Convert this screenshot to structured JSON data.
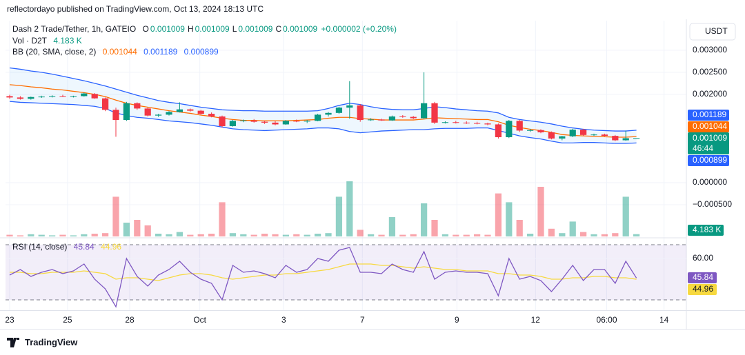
{
  "header": {
    "published": "reflectordayo published on TradingView.com, Oct 13, 2024 18:13 UTC"
  },
  "footer": "TradingView",
  "chart_data": {
    "type": "candlestick",
    "symbol": "Dash 2 Trade/Tether, 1h, GATEIO",
    "ohlc_labels": [
      "O",
      "H",
      "L",
      "C"
    ],
    "change": "+0.000002 (+0.20%)",
    "volume_title": "Vol · D2T",
    "volume_label": "4.183 K",
    "bb_title": "BB (20, SMA, close, 2)",
    "rsi_title": "RSI (14, close)",
    "currency": "USDT",
    "countdown": "46:44",
    "up_color": "#089981",
    "down_color": "#f23645",
    "bb_color": "#2962ff",
    "basis_color": "#ff6d00",
    "rsi_color": "#7e57c2",
    "rsi_ma_color": "#f7d940",
    "xlim": [
      -0.39,
      63.7
    ],
    "xticks": [
      {
        "value": 0,
        "label": "23"
      },
      {
        "value": 5.45,
        "label": "25"
      },
      {
        "value": 11.3,
        "label": "28"
      },
      {
        "value": 17.9,
        "label": "Oct"
      },
      {
        "value": 25.8,
        "label": "3"
      },
      {
        "value": 33.2,
        "label": "7"
      },
      {
        "value": 42.1,
        "label": "9"
      },
      {
        "value": 49.5,
        "label": "12"
      },
      {
        "value": 56.2,
        "label": "06:00"
      },
      {
        "value": 61.6,
        "label": "14"
      }
    ],
    "ylim": [
      -0.00125,
      0.00367
    ],
    "yticks": [
      {
        "value": 0.003,
        "label": "0.003000"
      },
      {
        "value": 0.0025,
        "label": "0.002500"
      },
      {
        "value": 0.002,
        "label": "0.002000"
      },
      {
        "value": 0,
        "label": "0.000000"
      },
      {
        "value": -0.0005,
        "label": "−0.000500"
      }
    ],
    "grid": true,
    "candles": [
      [
        0.00196,
        0.00199,
        0.0019,
        0.00193
      ],
      [
        0.00193,
        0.00196,
        0.00188,
        0.0019
      ],
      [
        0.0019,
        0.00195,
        0.00188,
        0.00194
      ],
      [
        0.00194,
        0.00197,
        0.00192,
        0.00195
      ],
      [
        0.00195,
        0.00198,
        0.00193,
        0.00196
      ],
      [
        0.00196,
        0.00199,
        0.00194,
        0.00195
      ],
      [
        0.00195,
        0.00197,
        0.00193,
        0.00196
      ],
      [
        0.00196,
        0.00204,
        0.00195,
        0.00202
      ],
      [
        0.00201,
        0.00203,
        0.0019,
        0.00191
      ],
      [
        0.00191,
        0.00193,
        0.00162,
        0.00165
      ],
      [
        0.00165,
        0.0017,
        0.00104,
        0.00142
      ],
      [
        0.00142,
        0.00183,
        0.0014,
        0.0018
      ],
      [
        0.0018,
        0.00182,
        0.00165,
        0.00168
      ],
      [
        0.00168,
        0.0017,
        0.0015,
        0.00152
      ],
      [
        0.00152,
        0.00156,
        0.00149,
        0.00154
      ],
      [
        0.00154,
        0.00162,
        0.00152,
        0.0016
      ],
      [
        0.0016,
        0.00182,
        0.00159,
        0.00166
      ],
      [
        0.00166,
        0.00168,
        0.00161,
        0.00163
      ],
      [
        0.00163,
        0.00165,
        0.00154,
        0.00156
      ],
      [
        0.00156,
        0.00159,
        0.00148,
        0.0015
      ],
      [
        0.0015,
        0.00152,
        0.00125,
        0.00128
      ],
      [
        0.00128,
        0.00142,
        0.00127,
        0.0014
      ],
      [
        0.0014,
        0.00143,
        0.00137,
        0.00141
      ],
      [
        0.00141,
        0.00144,
        0.00136,
        0.00138
      ],
      [
        0.00138,
        0.0014,
        0.00133,
        0.00136
      ],
      [
        0.00136,
        0.00139,
        0.0013,
        0.00132
      ],
      [
        0.00132,
        0.00142,
        0.00131,
        0.0014
      ],
      [
        0.0014,
        0.00143,
        0.00137,
        0.00139
      ],
      [
        0.00139,
        0.00142,
        0.00135,
        0.0014
      ],
      [
        0.0014,
        0.00156,
        0.00139,
        0.00154
      ],
      [
        0.00154,
        0.0016,
        0.0015,
        0.00158
      ],
      [
        0.00158,
        0.00172,
        0.00156,
        0.0017
      ],
      [
        0.0017,
        0.0023,
        0.00145,
        0.00175
      ],
      [
        0.00175,
        0.00178,
        0.00138,
        0.00142
      ],
      [
        0.00142,
        0.00146,
        0.0014,
        0.00143
      ],
      [
        0.00143,
        0.00145,
        0.0014,
        0.00141
      ],
      [
        0.00141,
        0.00152,
        0.0014,
        0.0015
      ],
      [
        0.0015,
        0.00153,
        0.00147,
        0.00149
      ],
      [
        0.00149,
        0.00151,
        0.00144,
        0.00146
      ],
      [
        0.00146,
        0.0025,
        0.00145,
        0.0018
      ],
      [
        0.0018,
        0.00183,
        0.00133,
        0.00136
      ],
      [
        0.00136,
        0.00139,
        0.00134,
        0.00137
      ],
      [
        0.00137,
        0.0014,
        0.00134,
        0.00136
      ],
      [
        0.00136,
        0.00139,
        0.00133,
        0.00135
      ],
      [
        0.00135,
        0.00138,
        0.00132,
        0.00134
      ],
      [
        0.00134,
        0.00136,
        0.0013,
        0.00132
      ],
      [
        0.00132,
        0.00134,
        0.001,
        0.00103
      ],
      [
        0.00103,
        0.00142,
        0.00101,
        0.0014
      ],
      [
        0.0014,
        0.00142,
        0.00115,
        0.00118
      ],
      [
        0.00118,
        0.00122,
        0.00115,
        0.00119
      ],
      [
        0.00119,
        0.00121,
        0.00112,
        0.00114
      ],
      [
        0.00114,
        0.00116,
        0.00098,
        0.001
      ],
      [
        0.001,
        0.00106,
        0.00096,
        0.00105
      ],
      [
        0.00105,
        0.00122,
        0.00103,
        0.0012
      ],
      [
        0.0012,
        0.00122,
        0.00106,
        0.00108
      ],
      [
        0.00108,
        0.00111,
        0.00106,
        0.00109
      ],
      [
        0.00109,
        0.00111,
        0.00105,
        0.00106
      ],
      [
        0.00106,
        0.00108,
        0.00094,
        0.00096
      ],
      [
        0.00096,
        0.00118,
        0.00095,
        0.001007
      ],
      [
        0.001009,
        0.001009,
        0.001009,
        0.001009
      ]
    ],
    "bb_upper": [
      0.0026,
      0.00257,
      0.00253,
      0.0025,
      0.00246,
      0.00241,
      0.00236,
      0.00231,
      0.00225,
      0.00219,
      0.00212,
      0.00205,
      0.00198,
      0.00192,
      0.00186,
      0.00182,
      0.00179,
      0.00175,
      0.00171,
      0.00168,
      0.00165,
      0.00164,
      0.00163,
      0.00163,
      0.00162,
      0.00162,
      0.00162,
      0.00162,
      0.00162,
      0.00163,
      0.00168,
      0.00175,
      0.0018,
      0.00177,
      0.00172,
      0.00168,
      0.00166,
      0.00165,
      0.00165,
      0.00168,
      0.00172,
      0.0017,
      0.00167,
      0.00165,
      0.00163,
      0.00162,
      0.00158,
      0.00148,
      0.00143,
      0.0014,
      0.00137,
      0.00133,
      0.00128,
      0.00124,
      0.00121,
      0.00119,
      0.00118,
      0.00117,
      0.00117,
      0.001189
    ],
    "bb_basis": [
      0.00222,
      0.0022,
      0.00217,
      0.00215,
      0.00212,
      0.0021,
      0.00207,
      0.00204,
      0.002,
      0.00195,
      0.00187,
      0.0018,
      0.00175,
      0.00171,
      0.00167,
      0.00163,
      0.0016,
      0.00157,
      0.00153,
      0.0015,
      0.00146,
      0.00143,
      0.00141,
      0.00141,
      0.0014,
      0.0014,
      0.0014,
      0.00141,
      0.00142,
      0.00143,
      0.00146,
      0.00148,
      0.00148,
      0.00145,
      0.00144,
      0.00142,
      0.00142,
      0.00142,
      0.00142,
      0.00144,
      0.00147,
      0.00146,
      0.00145,
      0.00144,
      0.00143,
      0.00143,
      0.00138,
      0.0013,
      0.00125,
      0.00121,
      0.00118,
      0.00114,
      0.00109,
      0.00107,
      0.00106,
      0.00105,
      0.00104,
      0.00103,
      0.00103,
      0.001044
    ],
    "bb_lower": [
      0.00184,
      0.00182,
      0.00181,
      0.0018,
      0.00179,
      0.00178,
      0.00177,
      0.00175,
      0.00173,
      0.00168,
      0.00158,
      0.00152,
      0.00148,
      0.00146,
      0.00143,
      0.0014,
      0.00138,
      0.00136,
      0.00133,
      0.0013,
      0.00126,
      0.00122,
      0.0012,
      0.00119,
      0.00118,
      0.00119,
      0.0012,
      0.00121,
      0.00122,
      0.00124,
      0.00124,
      0.00122,
      0.00116,
      0.00113,
      0.00115,
      0.00117,
      0.00118,
      0.00119,
      0.0012,
      0.0012,
      0.00122,
      0.00123,
      0.00123,
      0.00123,
      0.00124,
      0.00124,
      0.00118,
      0.00112,
      0.00106,
      0.00102,
      0.00099,
      0.00094,
      0.0009,
      0.0009,
      0.00091,
      0.00091,
      0.0009,
      0.00089,
      0.00089,
      0.000899
    ],
    "vlim": [
      0,
      100
    ],
    "volume": [
      3,
      2,
      4,
      3,
      2,
      3,
      2,
      4,
      5,
      6,
      72,
      25,
      30,
      20,
      5,
      4,
      8,
      3,
      4,
      5,
      62,
      6,
      4,
      3,
      5,
      4,
      3,
      4,
      3,
      5,
      6,
      72,
      100,
      12,
      4,
      3,
      35,
      3,
      4,
      60,
      30,
      4,
      3,
      3,
      4,
      3,
      78,
      62,
      30,
      5,
      90,
      14,
      6,
      27,
      8,
      4,
      4,
      6,
      72,
      4.183
    ],
    "rsi_lim": [
      22.5,
      72.5
    ],
    "rsi_bands": [
      30,
      70
    ],
    "rsi_ticks": [
      {
        "value": 60,
        "label": "60.00"
      }
    ],
    "rsi": [
      48,
      52,
      47,
      50,
      52,
      49,
      51,
      56,
      45,
      38,
      25,
      60,
      47,
      40,
      48,
      52,
      58,
      50,
      45,
      42,
      30,
      55,
      50,
      51,
      49,
      46,
      55,
      50,
      52,
      60,
      58,
      66,
      68,
      50,
      50,
      49,
      56,
      52,
      50,
      65,
      45,
      50,
      51,
      50,
      50,
      49,
      33,
      60,
      45,
      47,
      44,
      36,
      45,
      55,
      44,
      52,
      52,
      42,
      58,
      45.84
    ],
    "rsi_ma": [
      50,
      50,
      49,
      49,
      50,
      50,
      50,
      51,
      50,
      49,
      45,
      46,
      46,
      45,
      44,
      46,
      48,
      49,
      49,
      48,
      46,
      45,
      46,
      47,
      48,
      48,
      49,
      49,
      50,
      51,
      52,
      54,
      56,
      56,
      56,
      55,
      55,
      54,
      53,
      54,
      53,
      52,
      52,
      51,
      51,
      51,
      49,
      49,
      48,
      48,
      47,
      45,
      45,
      46,
      46,
      47,
      47,
      46,
      46,
      44.96
    ]
  }
}
